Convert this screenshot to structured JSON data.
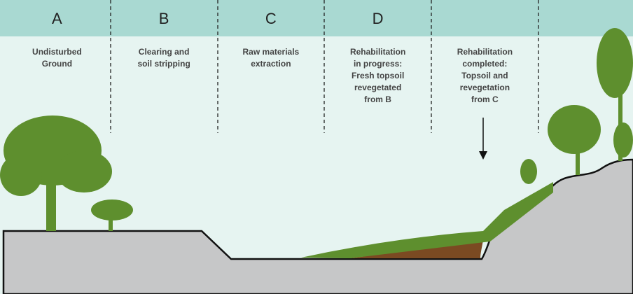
{
  "stages": [
    {
      "letter": "A",
      "lines": [
        "Undisturbed",
        "Ground"
      ]
    },
    {
      "letter": "B",
      "lines": [
        "Clearing and",
        "soil stripping"
      ]
    },
    {
      "letter": "C",
      "lines": [
        "Raw materials",
        "extraction"
      ]
    },
    {
      "letter": "D",
      "lines": [
        "Rehabilitation",
        "in progress:",
        "Fresh topsoil",
        "revegetated",
        "from B"
      ]
    },
    {
      "lines": [
        "Rehabilitation",
        "completed:",
        "Topsoil and",
        "revegetation",
        "from C"
      ]
    }
  ]
}
